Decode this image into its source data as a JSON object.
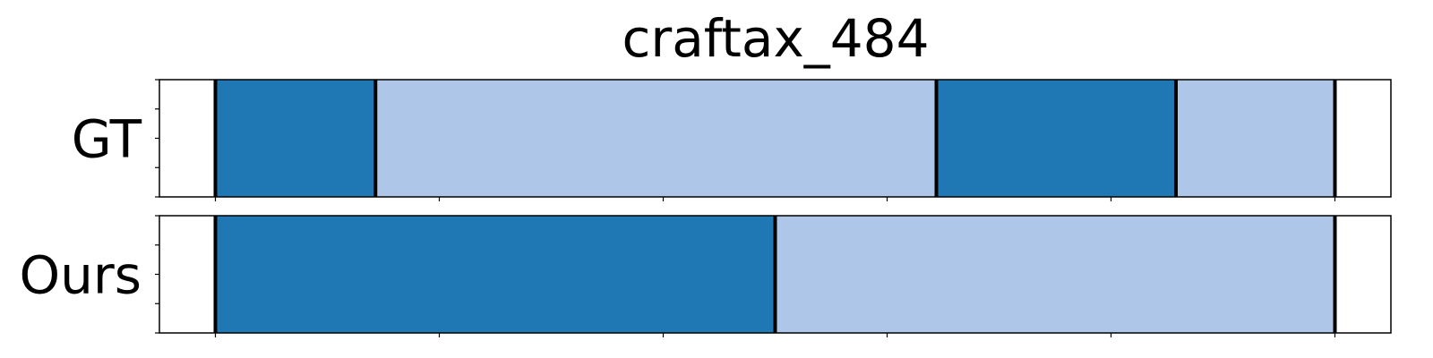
{
  "chart_data": {
    "type": "bar",
    "title": "craftax_484",
    "xlim": [
      -50,
      1050
    ],
    "x_ticks": [
      0,
      200,
      400,
      600,
      800,
      1000
    ],
    "x_tick_labels_visible": false,
    "colors": {
      "dark": "#1f77b4",
      "light": "#aec7e8",
      "boundary": "#000000"
    },
    "rows": [
      {
        "label": "GT",
        "segments": [
          {
            "start": 0,
            "end": 143,
            "color": "dark"
          },
          {
            "start": 143,
            "end": 644,
            "color": "light"
          },
          {
            "start": 644,
            "end": 858,
            "color": "dark"
          },
          {
            "start": 858,
            "end": 1000,
            "color": "light"
          }
        ]
      },
      {
        "label": "Ours",
        "segments": [
          {
            "start": 0,
            "end": 500,
            "color": "dark"
          },
          {
            "start": 500,
            "end": 1000,
            "color": "light"
          }
        ]
      }
    ]
  }
}
